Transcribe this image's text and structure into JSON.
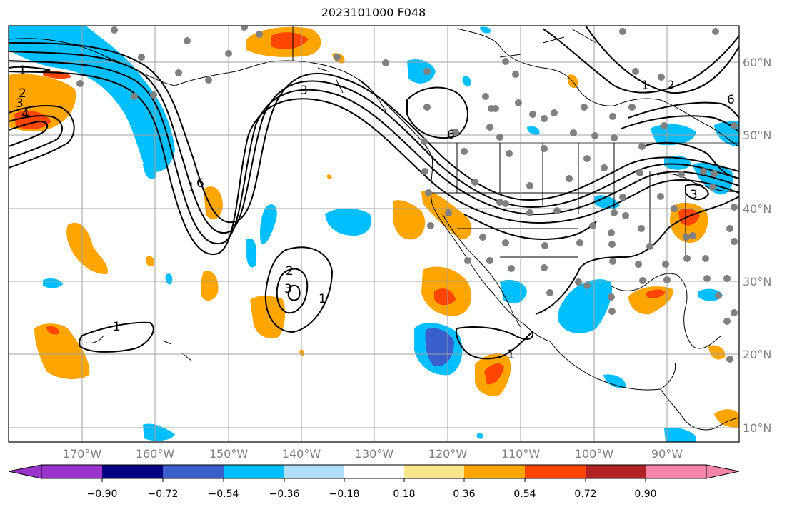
{
  "title": "2023101000 F048",
  "longitude_labels": [
    "170°W",
    "160°W",
    "150°W",
    "140°W",
    "130°W",
    "120°W",
    "110°W",
    "100°W",
    "90°W"
  ],
  "latitude_labels": [
    "60°N",
    "50°N",
    "40°N",
    "30°N",
    "20°N",
    "10°N"
  ],
  "colorbar": {
    "tick_labels": [
      "−0.90",
      "−0.72",
      "−0.54",
      "−0.36",
      "−0.18",
      "0.18",
      "0.36",
      "0.54",
      "0.72",
      "0.90"
    ],
    "colors": [
      "#9933cc",
      "#000080",
      "#3a5fcd",
      "#00bfff",
      "#b0e0f8",
      "#ffffff",
      "#f8e68a",
      "#ffa500",
      "#ff4500",
      "#b22222",
      "#f585a8"
    ]
  },
  "contour_labels": [
    "1",
    "2",
    "3",
    "4",
    "3",
    "6",
    "2",
    "3",
    "1",
    "1",
    "1",
    "1",
    "2",
    "6",
    "6",
    "3",
    "1"
  ],
  "palette": {
    "purple": "#9933cc",
    "navy": "#000080",
    "royal": "#3a5fcd",
    "sky": "#00bfff",
    "pale_blue": "#b0e0f8",
    "pale_yellow": "#f8e68a",
    "orange": "#ffa500",
    "red_orange": "#ff4500",
    "brick": "#b22222",
    "pink": "#f585a8",
    "station": "#808080"
  }
}
